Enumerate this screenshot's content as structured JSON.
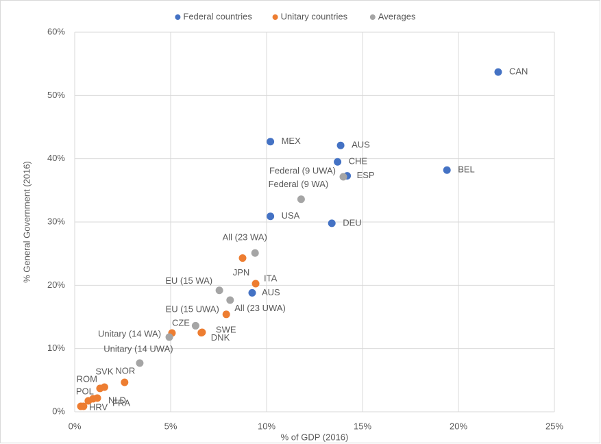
{
  "chart_data": {
    "type": "scatter",
    "x_label": "% of GDP (2016)",
    "y_label": "% General Government (2016)",
    "xlim": [
      0,
      25
    ],
    "ylim": [
      0,
      60
    ],
    "xticks": [
      {
        "value": 0,
        "label": "0%"
      },
      {
        "value": 5,
        "label": "5%"
      },
      {
        "value": 10,
        "label": "10%"
      },
      {
        "value": 15,
        "label": "15%"
      },
      {
        "value": 20,
        "label": "20%"
      },
      {
        "value": 25,
        "label": "25%"
      }
    ],
    "yticks": [
      {
        "value": 0,
        "label": "0%"
      },
      {
        "value": 10,
        "label": "10%"
      },
      {
        "value": 20,
        "label": "20%"
      },
      {
        "value": 30,
        "label": "30%"
      },
      {
        "value": 40,
        "label": "40%"
      },
      {
        "value": 50,
        "label": "50%"
      },
      {
        "value": 60,
        "label": "60%"
      }
    ],
    "grid": true,
    "legend": "top",
    "series": [
      {
        "name": "Federal countries",
        "color": "#4472c4",
        "x": [
          22.07,
          10.2,
          13.86,
          13.7,
          14.2,
          19.4,
          10.2,
          13.4,
          9.25
        ],
        "values": [
          53.7,
          42.7,
          42.1,
          39.5,
          37.3,
          38.2,
          30.9,
          29.8,
          18.8
        ],
        "labels": [
          "CAN",
          "MEX",
          "AUS",
          "CHE",
          "ESP",
          "BEL",
          "USA",
          "DEU",
          "AUS"
        ]
      },
      {
        "name": "Unitary countries",
        "color": "#ed7d31",
        "x": [
          8.75,
          9.43,
          7.9,
          5.07,
          6.64,
          6.6,
          2.6,
          1.55,
          1.32,
          1.18,
          0.96,
          0.71,
          0.32,
          0.46
        ],
        "values": [
          24.3,
          20.25,
          15.4,
          12.45,
          12.56,
          12.5,
          4.66,
          3.9,
          3.7,
          2.17,
          2.06,
          1.73,
          0.87,
          0.87
        ],
        "labels": [
          "JPN",
          "ITA",
          "All (23 UWA)",
          "CZE",
          "SWE",
          "DNK",
          "NOR",
          "SVK",
          "ROM",
          "FRA",
          "NLD",
          "POL",
          "HRV",
          null
        ]
      },
      {
        "name": "Averages",
        "color": "#a5a5a5",
        "x": [
          14.0,
          11.8,
          9.4,
          7.54,
          8.1,
          6.3,
          4.93,
          3.39
        ],
        "values": [
          37.15,
          33.6,
          25.1,
          19.2,
          17.65,
          13.6,
          11.8,
          7.7
        ],
        "labels": [
          "Federal (9 UWA)",
          "Federal (9 WA)",
          "All (23 WA)",
          "EU (15 WA)",
          "EU (15 UWA)",
          null,
          "Unitary (14 WA)",
          "Unitary (14 UWA)"
        ]
      }
    ]
  }
}
